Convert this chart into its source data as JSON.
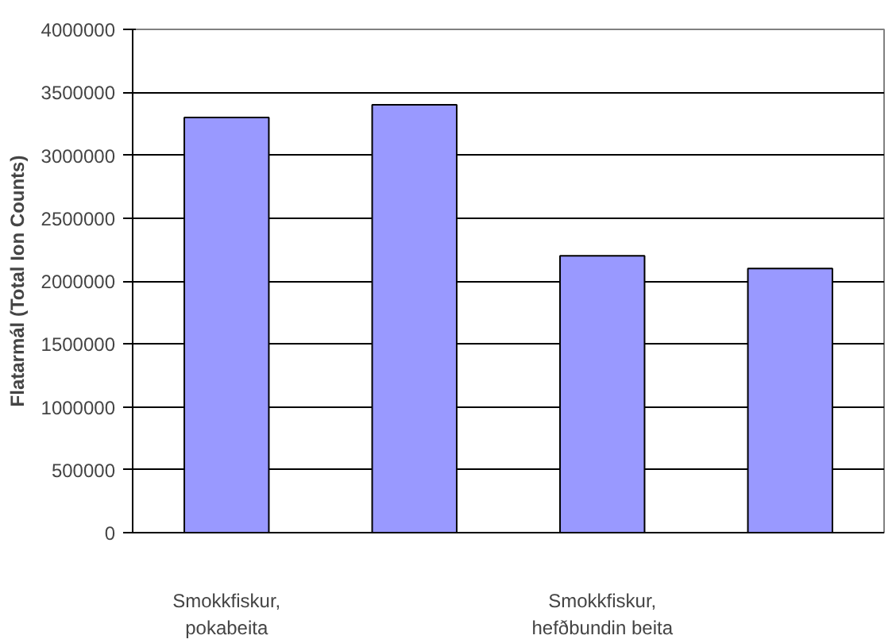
{
  "chart_data": {
    "type": "bar",
    "ylabel": "Flatarmál (Total Ion Counts)",
    "categories": [
      "Smokkfiskur, pokabeita",
      null,
      "Smokkfiskur, hefðbundin beita",
      null
    ],
    "values": [
      3300000,
      3400000,
      2200000,
      2100000
    ],
    "color": "#9999ff",
    "ylim": [
      0,
      4000000
    ],
    "yticks": [
      0,
      500000,
      1000000,
      1500000,
      2000000,
      2500000,
      3000000,
      3500000,
      4000000
    ],
    "grid": "y"
  }
}
